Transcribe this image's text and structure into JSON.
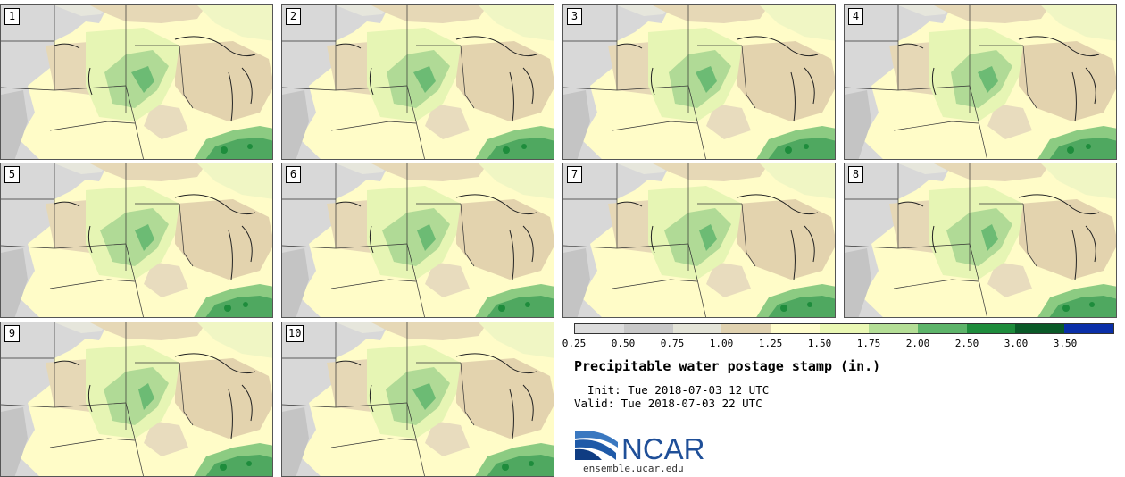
{
  "panels": [
    {
      "label": "1"
    },
    {
      "label": "2"
    },
    {
      "label": "3"
    },
    {
      "label": "4"
    },
    {
      "label": "5"
    },
    {
      "label": "6"
    },
    {
      "label": "7"
    },
    {
      "label": "8"
    },
    {
      "label": "9"
    },
    {
      "label": "10"
    }
  ],
  "colorbar": {
    "colors": [
      "#dcdcdc",
      "#c8c8c8",
      "#e4e4d8",
      "#e0d2b0",
      "#fffdcc",
      "#eaf8b4",
      "#b4de96",
      "#5db46a",
      "#1e8c3c",
      "#0a5a28",
      "#0a2fa8"
    ],
    "ticks": [
      "0.25",
      "0.50",
      "0.75",
      "1.00",
      "1.25",
      "1.50",
      "1.75",
      "2.00",
      "2.50",
      "3.00",
      "3.50"
    ]
  },
  "title": "Precipitable water postage stamp (in.)",
  "init": "  Init: Tue 2018-07-03 12 UTC",
  "valid": "Valid: Tue 2018-07-03 22 UTC",
  "logo": {
    "text": "NCAR",
    "url": "ensemble.ucar.edu"
  }
}
